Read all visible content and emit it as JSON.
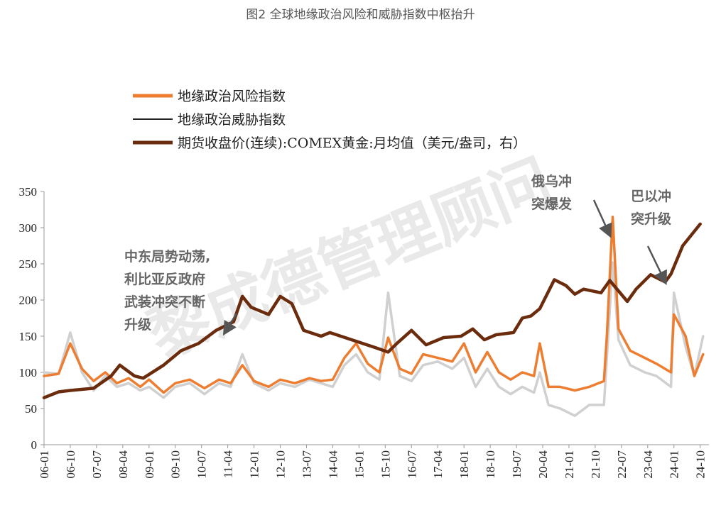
{
  "caption": "图2 全球地缘政治风险和威胁指数中枢抬升",
  "watermark": "黎成德管理顾问",
  "chart_data": {
    "type": "line",
    "title": "图2 全球地缘政治风险和威胁指数中枢抬升",
    "xlabel": "",
    "ylabel": "",
    "ylim": [
      0,
      350
    ],
    "yticks": [
      0,
      50,
      100,
      150,
      200,
      250,
      300,
      350
    ],
    "xticks": [
      "06-01",
      "06-10",
      "07-07",
      "08-04",
      "09-01",
      "09-10",
      "10-07",
      "11-04",
      "12-01",
      "12-10",
      "13-07",
      "14-04",
      "15-01",
      "15-10",
      "16-07",
      "17-04",
      "18-01",
      "18-10",
      "19-07",
      "20-04",
      "21-01",
      "21-10",
      "22-07",
      "23-04",
      "24-01",
      "24-10"
    ],
    "x_range": [
      "2006-01",
      "2025-01"
    ],
    "grid": "none",
    "legend_position": "top",
    "series": [
      {
        "name": "地缘政治风险指数",
        "color": "#ED7D31",
        "points": [
          [
            "2006-01",
            95
          ],
          [
            "2006-06",
            98
          ],
          [
            "2006-10",
            140
          ],
          [
            "2007-02",
            105
          ],
          [
            "2007-06",
            88
          ],
          [
            "2007-10",
            100
          ],
          [
            "2008-02",
            85
          ],
          [
            "2008-06",
            92
          ],
          [
            "2008-10",
            80
          ],
          [
            "2009-01",
            90
          ],
          [
            "2009-06",
            72
          ],
          [
            "2009-10",
            85
          ],
          [
            "2010-03",
            90
          ],
          [
            "2010-08",
            78
          ],
          [
            "2011-01",
            90
          ],
          [
            "2011-05",
            85
          ],
          [
            "2011-09",
            110
          ],
          [
            "2012-01",
            88
          ],
          [
            "2012-06",
            80
          ],
          [
            "2012-10",
            90
          ],
          [
            "2013-03",
            85
          ],
          [
            "2013-08",
            92
          ],
          [
            "2013-12",
            88
          ],
          [
            "2014-04",
            90
          ],
          [
            "2014-08",
            120
          ],
          [
            "2014-12",
            140
          ],
          [
            "2015-04",
            112
          ],
          [
            "2015-08",
            100
          ],
          [
            "2015-11",
            148
          ],
          [
            "2016-03",
            105
          ],
          [
            "2016-07",
            98
          ],
          [
            "2016-11",
            125
          ],
          [
            "2017-04",
            120
          ],
          [
            "2017-09",
            115
          ],
          [
            "2018-01",
            140
          ],
          [
            "2018-05",
            100
          ],
          [
            "2018-09",
            128
          ],
          [
            "2019-01",
            100
          ],
          [
            "2019-05",
            90
          ],
          [
            "2019-09",
            100
          ],
          [
            "2020-01",
            95
          ],
          [
            "2020-03",
            140
          ],
          [
            "2020-06",
            80
          ],
          [
            "2020-10",
            80
          ],
          [
            "2021-03",
            75
          ],
          [
            "2021-08",
            80
          ],
          [
            "2022-01",
            88
          ],
          [
            "2022-02",
            150
          ],
          [
            "2022-04",
            315
          ],
          [
            "2022-06",
            160
          ],
          [
            "2022-10",
            130
          ],
          [
            "2023-03",
            120
          ],
          [
            "2023-07",
            112
          ],
          [
            "2023-12",
            100
          ],
          [
            "2024-01",
            180
          ],
          [
            "2024-05",
            150
          ],
          [
            "2024-08",
            95
          ],
          [
            "2024-11",
            125
          ]
        ]
      },
      {
        "name": "地缘政治威胁指数",
        "color": "#D0D0D0",
        "points": [
          [
            "2006-01",
            100
          ],
          [
            "2006-06",
            98
          ],
          [
            "2006-10",
            155
          ],
          [
            "2007-02",
            100
          ],
          [
            "2007-06",
            75
          ],
          [
            "2007-10",
            95
          ],
          [
            "2008-02",
            80
          ],
          [
            "2008-06",
            85
          ],
          [
            "2008-10",
            75
          ],
          [
            "2009-01",
            80
          ],
          [
            "2009-06",
            65
          ],
          [
            "2009-10",
            80
          ],
          [
            "2010-03",
            85
          ],
          [
            "2010-08",
            70
          ],
          [
            "2011-01",
            85
          ],
          [
            "2011-05",
            80
          ],
          [
            "2011-09",
            125
          ],
          [
            "2012-01",
            85
          ],
          [
            "2012-06",
            75
          ],
          [
            "2012-10",
            85
          ],
          [
            "2013-03",
            80
          ],
          [
            "2013-08",
            90
          ],
          [
            "2013-12",
            85
          ],
          [
            "2014-04",
            80
          ],
          [
            "2014-08",
            110
          ],
          [
            "2014-12",
            125
          ],
          [
            "2015-04",
            100
          ],
          [
            "2015-08",
            90
          ],
          [
            "2015-11",
            210
          ],
          [
            "2016-03",
            95
          ],
          [
            "2016-07",
            88
          ],
          [
            "2016-11",
            110
          ],
          [
            "2017-04",
            115
          ],
          [
            "2017-09",
            105
          ],
          [
            "2018-01",
            120
          ],
          [
            "2018-05",
            80
          ],
          [
            "2018-09",
            105
          ],
          [
            "2019-01",
            80
          ],
          [
            "2019-05",
            70
          ],
          [
            "2019-09",
            80
          ],
          [
            "2020-01",
            72
          ],
          [
            "2020-03",
            100
          ],
          [
            "2020-06",
            55
          ],
          [
            "2020-10",
            50
          ],
          [
            "2021-03",
            40
          ],
          [
            "2021-08",
            55
          ],
          [
            "2022-01",
            55
          ],
          [
            "2022-02",
            120
          ],
          [
            "2022-04",
            252
          ],
          [
            "2022-06",
            145
          ],
          [
            "2022-10",
            110
          ],
          [
            "2023-03",
            100
          ],
          [
            "2023-07",
            95
          ],
          [
            "2023-12",
            80
          ],
          [
            "2024-01",
            210
          ],
          [
            "2024-05",
            135
          ],
          [
            "2024-08",
            95
          ],
          [
            "2024-11",
            150
          ]
        ]
      },
      {
        "name": "期货收盘价(连续):COMEX黄金:月均值（美元/盎司，右）",
        "color": "#6B2C0E",
        "points": [
          [
            "2006-01",
            65
          ],
          [
            "2006-06",
            73
          ],
          [
            "2006-10",
            75
          ],
          [
            "2007-06",
            78
          ],
          [
            "2007-12",
            95
          ],
          [
            "2008-03",
            110
          ],
          [
            "2008-08",
            95
          ],
          [
            "2008-11",
            92
          ],
          [
            "2009-06",
            110
          ],
          [
            "2009-12",
            130
          ],
          [
            "2010-06",
            140
          ],
          [
            "2010-12",
            158
          ],
          [
            "2011-06",
            170
          ],
          [
            "2011-09",
            205
          ],
          [
            "2011-12",
            190
          ],
          [
            "2012-06",
            180
          ],
          [
            "2012-10",
            205
          ],
          [
            "2013-02",
            195
          ],
          [
            "2013-06",
            158
          ],
          [
            "2013-12",
            150
          ],
          [
            "2014-03",
            155
          ],
          [
            "2014-12",
            143
          ],
          [
            "2015-06",
            135
          ],
          [
            "2015-11",
            128
          ],
          [
            "2016-02",
            140
          ],
          [
            "2016-07",
            158
          ],
          [
            "2016-12",
            138
          ],
          [
            "2017-06",
            148
          ],
          [
            "2017-12",
            150
          ],
          [
            "2018-04",
            160
          ],
          [
            "2018-08",
            145
          ],
          [
            "2018-12",
            152
          ],
          [
            "2019-06",
            155
          ],
          [
            "2019-09",
            175
          ],
          [
            "2019-12",
            178
          ],
          [
            "2020-03",
            188
          ],
          [
            "2020-08",
            228
          ],
          [
            "2020-12",
            220
          ],
          [
            "2021-03",
            208
          ],
          [
            "2021-06",
            215
          ],
          [
            "2021-12",
            210
          ],
          [
            "2022-03",
            227
          ],
          [
            "2022-09",
            198
          ],
          [
            "2022-12",
            215
          ],
          [
            "2023-05",
            235
          ],
          [
            "2023-10",
            225
          ],
          [
            "2023-12",
            236
          ],
          [
            "2024-04",
            275
          ],
          [
            "2024-10",
            305
          ]
        ]
      }
    ],
    "annotations": [
      {
        "lines": [
          "中东局势动荡,",
          "利比亚反政府",
          "武装冲突不断",
          "升级"
        ],
        "target": [
          "2011-03",
          155
        ]
      },
      {
        "lines": [
          "俄乌冲",
          "突爆发"
        ],
        "target": [
          "2022-03",
          290
        ]
      },
      {
        "lines": [
          "巴以冲",
          "突升级"
        ],
        "target": [
          "2023-10",
          225
        ]
      }
    ]
  }
}
